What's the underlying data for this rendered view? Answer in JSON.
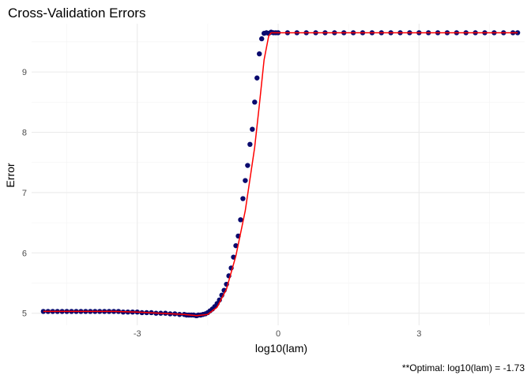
{
  "chart_data": {
    "type": "scatter",
    "title": "Cross-Validation Errors",
    "xlabel": "log10(lam)",
    "ylabel": "Error",
    "caption": "**Optimal: log10(lam) = -1.73",
    "xlim": [
      -5.25,
      5.25
    ],
    "ylim": [
      4.8,
      9.8
    ],
    "x_ticks": [
      -3,
      0,
      3
    ],
    "x_tick_labels": [
      "-3",
      "0",
      "3"
    ],
    "y_ticks": [
      5,
      6,
      7,
      8,
      9
    ],
    "y_tick_labels": [
      "5",
      "6",
      "7",
      "8",
      "9"
    ],
    "grid": true,
    "legend": "none",
    "colors": {
      "points": "#0a0a6e",
      "fit_line": "#ff0000",
      "grid": "#ebebeb"
    },
    "series": [
      {
        "kind": "points",
        "x": [
          -5.0,
          -4.9,
          -4.8,
          -4.7,
          -4.6,
          -4.5,
          -4.4,
          -4.3,
          -4.2,
          -4.1,
          -4.0,
          -3.9,
          -3.8,
          -3.7,
          -3.6,
          -3.5,
          -3.4,
          -3.3,
          -3.2,
          -3.1,
          -3.0,
          -2.9,
          -2.8,
          -2.7,
          -2.6,
          -2.5,
          -2.4,
          -2.3,
          -2.2,
          -2.1,
          -2.0,
          -1.95,
          -1.9,
          -1.85,
          -1.8,
          -1.75,
          -1.73,
          -1.7,
          -1.65,
          -1.6,
          -1.55,
          -1.5,
          -1.45,
          -1.4,
          -1.35,
          -1.3,
          -1.25,
          -1.2,
          -1.15,
          -1.1,
          -1.05,
          -1.0,
          -0.95,
          -0.9,
          -0.85,
          -0.8,
          -0.75,
          -0.7,
          -0.65,
          -0.6,
          -0.55,
          -0.5,
          -0.45,
          -0.4,
          -0.35,
          -0.3,
          -0.25,
          -0.2,
          -0.15,
          -0.1,
          -0.05,
          0.0,
          0.2,
          0.4,
          0.6,
          0.8,
          1.0,
          1.2,
          1.4,
          1.6,
          1.8,
          2.0,
          2.2,
          2.4,
          2.6,
          2.8,
          3.0,
          3.2,
          3.4,
          3.6,
          3.8,
          4.0,
          4.2,
          4.4,
          4.6,
          4.8,
          5.0,
          5.1
        ],
        "y": [
          5.03,
          5.03,
          5.03,
          5.03,
          5.03,
          5.03,
          5.03,
          5.03,
          5.03,
          5.03,
          5.03,
          5.03,
          5.03,
          5.03,
          5.03,
          5.03,
          5.03,
          5.02,
          5.02,
          5.02,
          5.02,
          5.01,
          5.01,
          5.01,
          5.0,
          5.0,
          5.0,
          4.99,
          4.99,
          4.98,
          4.98,
          4.97,
          4.97,
          4.97,
          4.97,
          4.96,
          4.96,
          4.97,
          4.97,
          4.98,
          4.99,
          5.01,
          5.04,
          5.07,
          5.11,
          5.16,
          5.22,
          5.3,
          5.38,
          5.48,
          5.62,
          5.75,
          5.93,
          6.12,
          6.28,
          6.55,
          6.9,
          7.2,
          7.45,
          7.8,
          8.05,
          8.5,
          8.9,
          9.3,
          9.55,
          9.64,
          9.65,
          9.64,
          9.66,
          9.65,
          9.65,
          9.65,
          9.65,
          9.65,
          9.65,
          9.65,
          9.65,
          9.65,
          9.65,
          9.65,
          9.65,
          9.65,
          9.65,
          9.65,
          9.65,
          9.65,
          9.65,
          9.65,
          9.65,
          9.65,
          9.65,
          9.65,
          9.65,
          9.65,
          9.65,
          9.65,
          9.65,
          9.65
        ]
      },
      {
        "kind": "fit_line",
        "x": [
          -5.0,
          -4.5,
          -4.0,
          -3.5,
          -3.0,
          -2.5,
          -2.0,
          -1.73,
          -1.5,
          -1.3,
          -1.1,
          -0.9,
          -0.7,
          -0.5,
          -0.4,
          -0.3,
          -0.2,
          -0.15,
          0.0,
          1.0,
          2.0,
          3.0,
          4.0,
          5.1
        ],
        "y": [
          5.03,
          5.03,
          5.03,
          5.03,
          5.02,
          5.0,
          4.98,
          4.96,
          4.98,
          5.1,
          5.4,
          5.95,
          6.7,
          7.75,
          8.45,
          9.2,
          9.6,
          9.65,
          9.65,
          9.65,
          9.65,
          9.65,
          9.65,
          9.65
        ]
      }
    ]
  }
}
